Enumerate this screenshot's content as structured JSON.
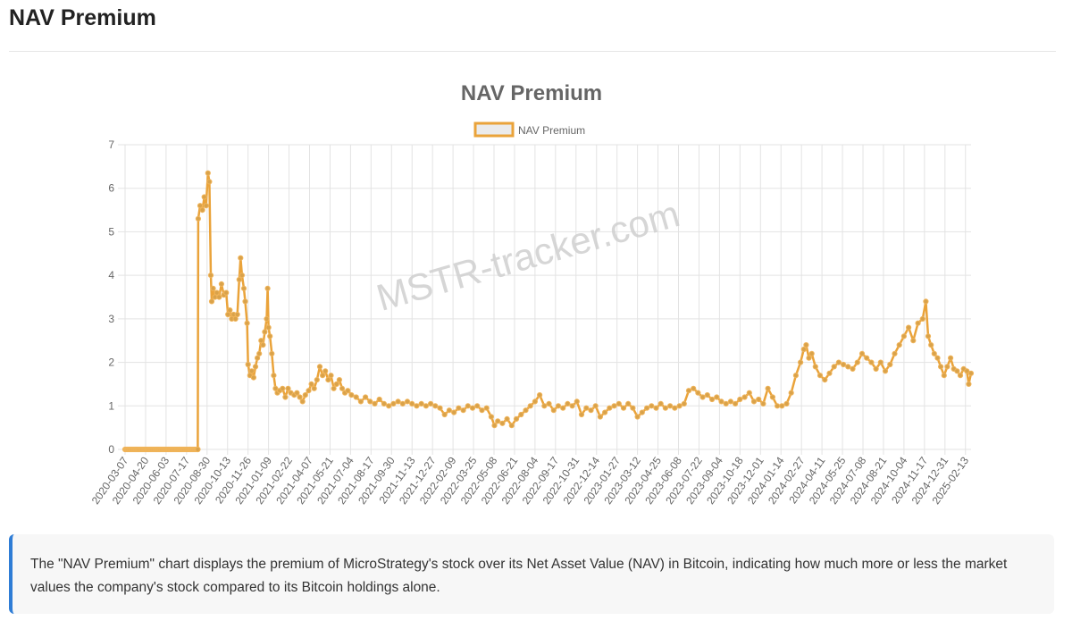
{
  "page": {
    "heading": "NAV Premium",
    "description": "The \"NAV Premium\" chart displays the premium of MicroStrategy's stock over its Net Asset Value (NAV) in Bitcoin, indicating how much more or less the market values the company's stock compared to its Bitcoin holdings alone."
  },
  "colors": {
    "line": "#eaa33a",
    "point_fill": "#d9a24a",
    "point_stroke": "#f0b45a",
    "title": "#666666",
    "grid": "#e3e3e3",
    "watermark": "#cfcfcf",
    "note_accent": "#2f7dd6"
  },
  "chart_data": {
    "type": "line",
    "title": "NAV Premium",
    "watermark": "MSTR-tracker.com",
    "legend": {
      "position": "top-center",
      "label": "NAV Premium"
    },
    "grid": true,
    "x_type": "date",
    "x_range": [
      "2020-03-07",
      "2025-02-25"
    ],
    "ylim": [
      0,
      7
    ],
    "yticks": [
      0,
      1,
      2,
      3,
      4,
      5,
      6,
      7
    ],
    "xticks": [
      "2020-03-07",
      "2020-04-20",
      "2020-06-03",
      "2020-07-17",
      "2020-08-30",
      "2020-10-13",
      "2020-11-26",
      "2021-01-09",
      "2021-02-22",
      "2021-04-07",
      "2021-05-21",
      "2021-07-04",
      "2021-08-17",
      "2021-09-30",
      "2021-11-13",
      "2021-12-27",
      "2022-02-09",
      "2022-03-25",
      "2022-05-08",
      "2022-06-21",
      "2022-08-04",
      "2022-09-17",
      "2022-10-31",
      "2022-12-14",
      "2023-01-27",
      "2023-03-12",
      "2023-04-25",
      "2023-06-08",
      "2023-07-22",
      "2023-09-04",
      "2023-10-18",
      "2023-12-01",
      "2024-01-14",
      "2024-02-27",
      "2024-04-11",
      "2024-05-25",
      "2024-07-08",
      "2024-08-21",
      "2024-10-04",
      "2024-11-17",
      "2024-12-31",
      "2025-02-13"
    ],
    "series": [
      {
        "name": "NAV Premium",
        "points": [
          [
            "2020-03-07",
            0
          ],
          [
            "2020-08-10",
            0
          ],
          [
            "2020-08-11",
            5.3
          ],
          [
            "2020-08-15",
            5.6
          ],
          [
            "2020-08-20",
            5.5
          ],
          [
            "2020-08-24",
            5.8
          ],
          [
            "2020-08-28",
            5.6
          ],
          [
            "2020-09-01",
            6.35
          ],
          [
            "2020-09-04",
            6.15
          ],
          [
            "2020-09-07",
            4.0
          ],
          [
            "2020-09-09",
            3.4
          ],
          [
            "2020-09-12",
            3.7
          ],
          [
            "2020-09-16",
            3.5
          ],
          [
            "2020-09-20",
            3.6
          ],
          [
            "2020-09-25",
            3.5
          ],
          [
            "2020-09-30",
            3.8
          ],
          [
            "2020-10-05",
            3.55
          ],
          [
            "2020-10-10",
            3.6
          ],
          [
            "2020-10-14",
            3.1
          ],
          [
            "2020-10-18",
            3.2
          ],
          [
            "2020-10-22",
            3.0
          ],
          [
            "2020-10-26",
            3.1
          ],
          [
            "2020-10-30",
            3.0
          ],
          [
            "2020-11-03",
            3.1
          ],
          [
            "2020-11-07",
            3.9
          ],
          [
            "2020-11-10",
            4.4
          ],
          [
            "2020-11-13",
            4.0
          ],
          [
            "2020-11-17",
            3.7
          ],
          [
            "2020-11-20",
            3.4
          ],
          [
            "2020-11-24",
            2.9
          ],
          [
            "2020-11-26",
            1.95
          ],
          [
            "2020-11-30",
            1.7
          ],
          [
            "2020-12-04",
            1.8
          ],
          [
            "2020-12-08",
            1.65
          ],
          [
            "2020-12-12",
            1.9
          ],
          [
            "2020-12-16",
            2.1
          ],
          [
            "2020-12-20",
            2.2
          ],
          [
            "2020-12-24",
            2.5
          ],
          [
            "2020-12-28",
            2.4
          ],
          [
            "2021-01-01",
            2.7
          ],
          [
            "2021-01-05",
            3.0
          ],
          [
            "2021-01-07",
            3.7
          ],
          [
            "2021-01-09",
            2.8
          ],
          [
            "2021-01-12",
            2.6
          ],
          [
            "2021-01-16",
            2.2
          ],
          [
            "2021-01-20",
            1.7
          ],
          [
            "2021-01-24",
            1.4
          ],
          [
            "2021-01-28",
            1.3
          ],
          [
            "2021-02-02",
            1.35
          ],
          [
            "2021-02-08",
            1.4
          ],
          [
            "2021-02-14",
            1.2
          ],
          [
            "2021-02-20",
            1.4
          ],
          [
            "2021-02-26",
            1.3
          ],
          [
            "2021-03-05",
            1.25
          ],
          [
            "2021-03-11",
            1.3
          ],
          [
            "2021-03-17",
            1.2
          ],
          [
            "2021-03-23",
            1.1
          ],
          [
            "2021-03-29",
            1.25
          ],
          [
            "2021-04-05",
            1.35
          ],
          [
            "2021-04-11",
            1.5
          ],
          [
            "2021-04-17",
            1.4
          ],
          [
            "2021-04-23",
            1.6
          ],
          [
            "2021-04-29",
            1.9
          ],
          [
            "2021-05-05",
            1.7
          ],
          [
            "2021-05-11",
            1.8
          ],
          [
            "2021-05-17",
            1.6
          ],
          [
            "2021-05-23",
            1.7
          ],
          [
            "2021-05-29",
            1.4
          ],
          [
            "2021-06-04",
            1.5
          ],
          [
            "2021-06-10",
            1.6
          ],
          [
            "2021-06-16",
            1.4
          ],
          [
            "2021-06-22",
            1.3
          ],
          [
            "2021-06-28",
            1.35
          ],
          [
            "2021-07-06",
            1.25
          ],
          [
            "2021-07-16",
            1.2
          ],
          [
            "2021-07-26",
            1.1
          ],
          [
            "2021-08-05",
            1.2
          ],
          [
            "2021-08-15",
            1.1
          ],
          [
            "2021-08-25",
            1.05
          ],
          [
            "2021-09-04",
            1.15
          ],
          [
            "2021-09-14",
            1.05
          ],
          [
            "2021-09-24",
            1.0
          ],
          [
            "2021-10-04",
            1.05
          ],
          [
            "2021-10-14",
            1.1
          ],
          [
            "2021-10-24",
            1.05
          ],
          [
            "2021-11-03",
            1.1
          ],
          [
            "2021-11-13",
            1.05
          ],
          [
            "2021-11-23",
            1.0
          ],
          [
            "2021-12-03",
            1.05
          ],
          [
            "2021-12-13",
            1.0
          ],
          [
            "2021-12-23",
            1.05
          ],
          [
            "2022-01-02",
            1.0
          ],
          [
            "2022-01-12",
            0.95
          ],
          [
            "2022-01-22",
            0.8
          ],
          [
            "2022-02-01",
            0.9
          ],
          [
            "2022-02-11",
            0.85
          ],
          [
            "2022-02-21",
            0.95
          ],
          [
            "2022-03-03",
            0.9
          ],
          [
            "2022-03-13",
            1.0
          ],
          [
            "2022-03-23",
            0.95
          ],
          [
            "2022-04-02",
            1.0
          ],
          [
            "2022-04-12",
            0.9
          ],
          [
            "2022-04-22",
            0.95
          ],
          [
            "2022-05-02",
            0.75
          ],
          [
            "2022-05-09",
            0.55
          ],
          [
            "2022-05-16",
            0.65
          ],
          [
            "2022-05-26",
            0.6
          ],
          [
            "2022-06-05",
            0.7
          ],
          [
            "2022-06-15",
            0.55
          ],
          [
            "2022-06-25",
            0.7
          ],
          [
            "2022-07-05",
            0.8
          ],
          [
            "2022-07-15",
            0.9
          ],
          [
            "2022-07-25",
            1.0
          ],
          [
            "2022-08-04",
            1.1
          ],
          [
            "2022-08-14",
            1.25
          ],
          [
            "2022-08-24",
            1.0
          ],
          [
            "2022-09-03",
            1.05
          ],
          [
            "2022-09-13",
            0.9
          ],
          [
            "2022-09-23",
            1.0
          ],
          [
            "2022-10-03",
            0.95
          ],
          [
            "2022-10-13",
            1.05
          ],
          [
            "2022-10-23",
            1.0
          ],
          [
            "2022-11-02",
            1.1
          ],
          [
            "2022-11-12",
            0.8
          ],
          [
            "2022-11-22",
            0.95
          ],
          [
            "2022-12-02",
            0.9
          ],
          [
            "2022-12-12",
            1.0
          ],
          [
            "2022-12-22",
            0.75
          ],
          [
            "2023-01-01",
            0.85
          ],
          [
            "2023-01-11",
            0.95
          ],
          [
            "2023-01-21",
            1.0
          ],
          [
            "2023-01-31",
            1.05
          ],
          [
            "2023-02-10",
            0.95
          ],
          [
            "2023-02-20",
            1.05
          ],
          [
            "2023-03-02",
            0.95
          ],
          [
            "2023-03-12",
            0.75
          ],
          [
            "2023-03-22",
            0.85
          ],
          [
            "2023-04-01",
            0.95
          ],
          [
            "2023-04-11",
            1.0
          ],
          [
            "2023-04-21",
            0.95
          ],
          [
            "2023-05-01",
            1.05
          ],
          [
            "2023-05-11",
            0.95
          ],
          [
            "2023-05-21",
            1.0
          ],
          [
            "2023-05-31",
            0.95
          ],
          [
            "2023-06-10",
            1.0
          ],
          [
            "2023-06-20",
            1.05
          ],
          [
            "2023-06-30",
            1.35
          ],
          [
            "2023-07-10",
            1.4
          ],
          [
            "2023-07-20",
            1.3
          ],
          [
            "2023-07-30",
            1.2
          ],
          [
            "2023-08-09",
            1.25
          ],
          [
            "2023-08-19",
            1.15
          ],
          [
            "2023-08-29",
            1.2
          ],
          [
            "2023-09-08",
            1.1
          ],
          [
            "2023-09-18",
            1.05
          ],
          [
            "2023-09-28",
            1.1
          ],
          [
            "2023-10-08",
            1.05
          ],
          [
            "2023-10-18",
            1.15
          ],
          [
            "2023-10-28",
            1.2
          ],
          [
            "2023-11-07",
            1.3
          ],
          [
            "2023-11-17",
            1.1
          ],
          [
            "2023-11-27",
            1.15
          ],
          [
            "2023-12-07",
            1.05
          ],
          [
            "2023-12-17",
            1.4
          ],
          [
            "2023-12-27",
            1.2
          ],
          [
            "2024-01-06",
            1.0
          ],
          [
            "2024-01-16",
            1.0
          ],
          [
            "2024-01-26",
            1.05
          ],
          [
            "2024-02-05",
            1.3
          ],
          [
            "2024-02-15",
            1.7
          ],
          [
            "2024-02-25",
            2.0
          ],
          [
            "2024-03-03",
            2.3
          ],
          [
            "2024-03-08",
            2.4
          ],
          [
            "2024-03-14",
            2.1
          ],
          [
            "2024-03-20",
            2.2
          ],
          [
            "2024-03-28",
            1.9
          ],
          [
            "2024-04-07",
            1.7
          ],
          [
            "2024-04-17",
            1.6
          ],
          [
            "2024-04-27",
            1.75
          ],
          [
            "2024-05-07",
            1.9
          ],
          [
            "2024-05-17",
            2.0
          ],
          [
            "2024-05-27",
            1.95
          ],
          [
            "2024-06-06",
            1.9
          ],
          [
            "2024-06-16",
            1.85
          ],
          [
            "2024-06-26",
            2.0
          ],
          [
            "2024-07-06",
            2.2
          ],
          [
            "2024-07-16",
            2.1
          ],
          [
            "2024-07-26",
            2.0
          ],
          [
            "2024-08-05",
            1.85
          ],
          [
            "2024-08-15",
            2.0
          ],
          [
            "2024-08-25",
            1.8
          ],
          [
            "2024-09-04",
            1.95
          ],
          [
            "2024-09-14",
            2.2
          ],
          [
            "2024-09-24",
            2.4
          ],
          [
            "2024-10-04",
            2.6
          ],
          [
            "2024-10-14",
            2.8
          ],
          [
            "2024-10-24",
            2.5
          ],
          [
            "2024-11-03",
            2.9
          ],
          [
            "2024-11-13",
            3.0
          ],
          [
            "2024-11-20",
            3.4
          ],
          [
            "2024-11-25",
            2.6
          ],
          [
            "2024-12-01",
            2.4
          ],
          [
            "2024-12-08",
            2.2
          ],
          [
            "2024-12-15",
            2.1
          ],
          [
            "2024-12-22",
            1.9
          ],
          [
            "2024-12-29",
            1.7
          ],
          [
            "2025-01-05",
            1.9
          ],
          [
            "2025-01-12",
            2.1
          ],
          [
            "2025-01-19",
            1.85
          ],
          [
            "2025-01-26",
            1.8
          ],
          [
            "2025-02-02",
            1.7
          ],
          [
            "2025-02-09",
            1.85
          ],
          [
            "2025-02-16",
            1.8
          ],
          [
            "2025-02-20",
            1.5
          ],
          [
            "2025-02-25",
            1.75
          ]
        ]
      }
    ]
  }
}
